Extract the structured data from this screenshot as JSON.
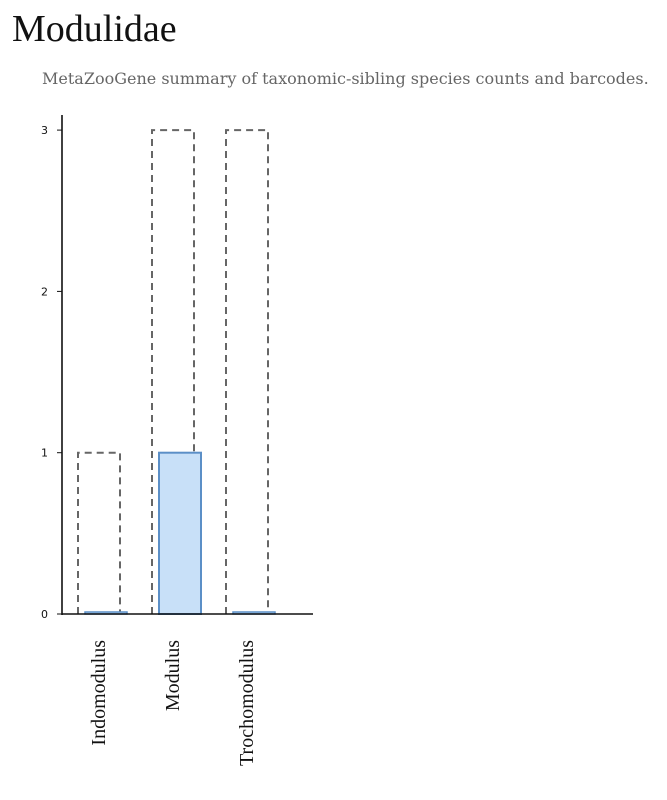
{
  "header": {
    "title": "Modulidae",
    "subtitle": "MetaZooGene summary of taxonomic-sibling species counts and barcodes."
  },
  "colors": {
    "species_outline": "#666666",
    "barcode_fill": "#c8e0f8",
    "barcode_stroke": "#5b8fc7",
    "axis": "#111111"
  },
  "chart_data": {
    "type": "bar",
    "categories": [
      "Indomodulus",
      "Modulus",
      "Trochomodulus"
    ],
    "series": [
      {
        "style": "dashed-outline",
        "values": [
          1,
          3,
          3
        ]
      },
      {
        "style": "filled",
        "values": [
          0,
          1,
          0
        ]
      }
    ],
    "yticks": [
      0,
      1,
      2,
      3
    ],
    "ylim": [
      0,
      3
    ],
    "grid": false,
    "legend": false
  }
}
